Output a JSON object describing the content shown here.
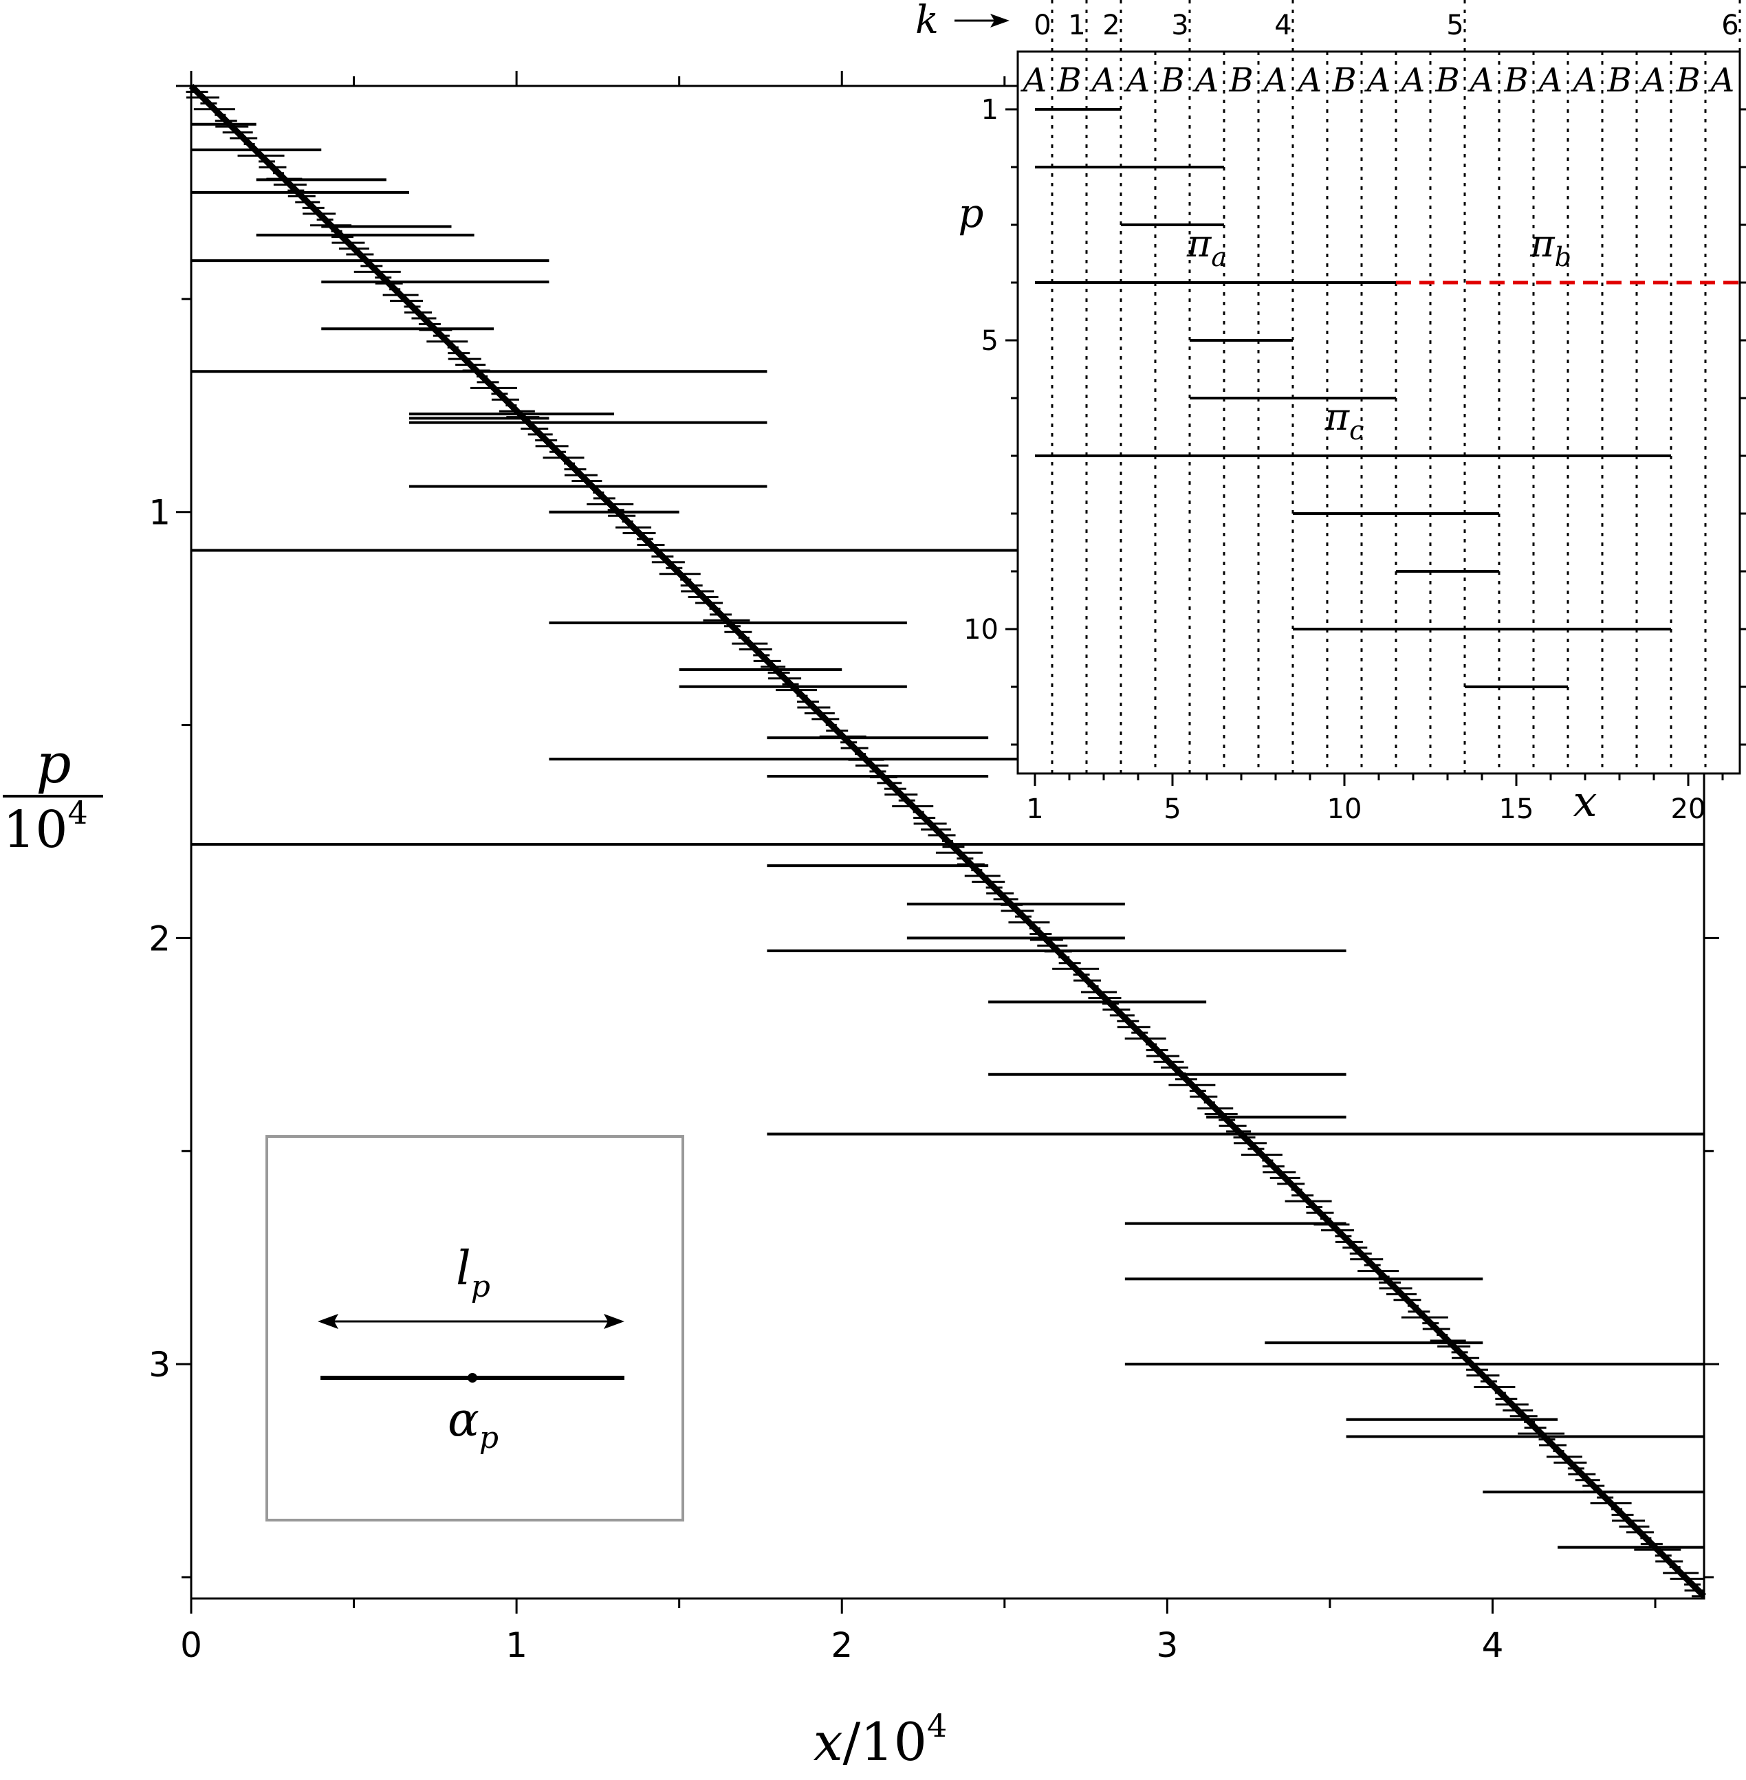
{
  "chart_data": [
    {
      "type": "interval-plot",
      "description_units": "x in units of 10^4, p in units of 10^4",
      "xlim": [
        0,
        4.65
      ],
      "ylim": [
        0,
        3.55
      ],
      "y_inverted": true,
      "x_ticks": [
        "0",
        "1",
        "2",
        "3",
        "4"
      ],
      "y_ticks": [
        "1",
        "2",
        "3"
      ],
      "xlabel": {
        "var": "x",
        "denom": "10",
        "exp": "4"
      },
      "ylabel": {
        "num": "p",
        "denom": "10",
        "exp": "4"
      },
      "long_intervals_x_start_end_p": [
        [
          0,
          0.2,
          0.09
        ],
        [
          0,
          0.4,
          0.15
        ],
        [
          0,
          0.67,
          0.25
        ],
        [
          0,
          1.1,
          0.41
        ],
        [
          0,
          1.77,
          0.67
        ],
        [
          0,
          4.65,
          1.09
        ],
        [
          0,
          4.65,
          1.78
        ],
        [
          0.2,
          0.6,
          0.22
        ],
        [
          0.2,
          0.87,
          0.35
        ],
        [
          0.4,
          0.8,
          0.33
        ],
        [
          0.4,
          1.1,
          0.46
        ],
        [
          0.4,
          0.93,
          0.57
        ],
        [
          0.67,
          1.3,
          0.77
        ],
        [
          0.67,
          1.77,
          0.94
        ],
        [
          0.67,
          1.1,
          0.78
        ],
        [
          0.67,
          1.77,
          0.79
        ],
        [
          1.1,
          2.2,
          1.26
        ],
        [
          1.1,
          1.5,
          1.0
        ],
        [
          1.1,
          4.65,
          1.58
        ],
        [
          1.5,
          2.2,
          1.41
        ],
        [
          1.5,
          2.0,
          1.37
        ],
        [
          1.77,
          2.45,
          1.53
        ],
        [
          1.77,
          2.45,
          1.62
        ],
        [
          1.77,
          3.55,
          2.03
        ],
        [
          1.77,
          2.45,
          1.83
        ],
        [
          1.77,
          4.65,
          2.46
        ],
        [
          2.2,
          2.87,
          1.92
        ],
        [
          2.2,
          2.87,
          2.0
        ],
        [
          2.45,
          3.12,
          2.15
        ],
        [
          2.45,
          3.55,
          2.32
        ],
        [
          2.87,
          3.55,
          2.67
        ],
        [
          2.87,
          3.97,
          2.8
        ],
        [
          2.87,
          4.65,
          3.0
        ],
        [
          3.12,
          3.55,
          2.42
        ],
        [
          3.3,
          3.97,
          2.95
        ],
        [
          3.55,
          4.2,
          3.13
        ],
        [
          3.55,
          4.65,
          3.17
        ],
        [
          3.97,
          4.65,
          3.3
        ],
        [
          4.2,
          4.65,
          3.43
        ]
      ],
      "legend_box": {
        "label_top": "l",
        "label_top_sub": "p",
        "label_bottom": "α",
        "label_bottom_sub": "p"
      }
    },
    {
      "type": "interval-plot-inset",
      "xlim": [
        0.5,
        21.5
      ],
      "ylim": [
        12.5,
        0.0
      ],
      "x_ticks": [
        "1",
        "5",
        "10",
        "15",
        "20"
      ],
      "y_ticks": [
        "1",
        "5",
        "10"
      ],
      "xlabel": "x",
      "ylabel": "p",
      "sequence_label": "ABAABABAABAABABAABABA",
      "sequence_chars": [
        "A",
        "B",
        "A",
        "A",
        "B",
        "A",
        "B",
        "A",
        "A",
        "B",
        "A",
        "A",
        "B",
        "A",
        "B",
        "A",
        "A",
        "B",
        "A",
        "B",
        "A"
      ],
      "k_label": "k",
      "k_markers": [
        {
          "k": "0",
          "x": 1.5
        },
        {
          "k": "1",
          "x": 2.5
        },
        {
          "k": "2",
          "x": 3.5
        },
        {
          "k": "3",
          "x": 5.5
        },
        {
          "k": "4",
          "x": 8.5
        },
        {
          "k": "5",
          "x": 13.5
        },
        {
          "k": "6",
          "x": 21.5
        }
      ],
      "intervals_p_xstart_xend": [
        [
          1,
          1,
          3.5
        ],
        [
          2,
          1,
          6.5
        ],
        [
          3,
          3.5,
          6.5
        ],
        [
          4,
          1,
          11.5
        ],
        [
          5,
          5.5,
          8.5
        ],
        [
          6,
          5.5,
          11.5
        ],
        [
          7,
          1,
          19.5
        ],
        [
          8,
          8.5,
          14.5
        ],
        [
          9,
          11.5,
          14.5
        ],
        [
          10,
          8.5,
          19.5
        ],
        [
          11,
          13.5,
          16.5
        ]
      ],
      "dashed_interval": {
        "p": 4,
        "x_start": 11.5,
        "x_end": 21.5,
        "color": "#e00000"
      },
      "annotations": [
        {
          "base": "π",
          "sub": "a",
          "x": 6.0,
          "p": 3.55,
          "color": "#000000"
        },
        {
          "base": "π",
          "sub": "b",
          "x": 16.0,
          "p": 3.55,
          "color": "#e00000"
        },
        {
          "base": "π",
          "sub": "c",
          "x": 10.0,
          "p": 6.55,
          "color": "#000000"
        }
      ]
    }
  ]
}
